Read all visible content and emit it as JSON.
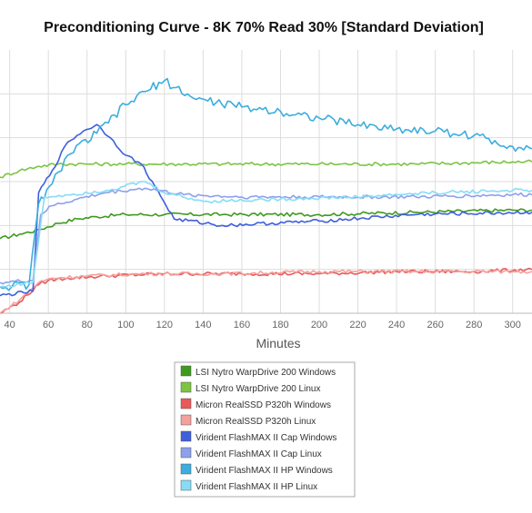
{
  "chart_data": {
    "type": "line",
    "title": "Preconditioning Curve - 8K 70% Read 30% [Standard Deviation]",
    "xlabel": "Minutes",
    "ylabel": "",
    "xlim": [
      35,
      310
    ],
    "ylim": [
      0,
      120
    ],
    "x_ticks": [
      40,
      60,
      80,
      100,
      120,
      140,
      160,
      180,
      200,
      220,
      240,
      260,
      280,
      300
    ],
    "y_gridlines": [
      20,
      40,
      60,
      80,
      100
    ],
    "legend_position": "bottom-center",
    "grid": true,
    "series": [
      {
        "name": "LSI Nytro WarpDrive 200 Windows",
        "color": "#3d9a1e",
        "points": [
          [
            35,
            34
          ],
          [
            45,
            36
          ],
          [
            55,
            38
          ],
          [
            65,
            41
          ],
          [
            75,
            43
          ],
          [
            85,
            44
          ],
          [
            100,
            45
          ],
          [
            120,
            45
          ],
          [
            150,
            45
          ],
          [
            200,
            45
          ],
          [
            250,
            46
          ],
          [
            300,
            47
          ],
          [
            310,
            47
          ]
        ]
      },
      {
        "name": "LSI Nytro WarpDrive 200 Linux",
        "color": "#7cc442",
        "points": [
          [
            35,
            62
          ],
          [
            45,
            65
          ],
          [
            55,
            67
          ],
          [
            65,
            68
          ],
          [
            80,
            68
          ],
          [
            100,
            68
          ],
          [
            150,
            68
          ],
          [
            200,
            68
          ],
          [
            250,
            68
          ],
          [
            300,
            69
          ],
          [
            310,
            69
          ]
        ]
      },
      {
        "name": "Micron RealSSD P320h Windows",
        "color": "#e8595a",
        "points": [
          [
            35,
            0
          ],
          [
            45,
            5
          ],
          [
            55,
            13
          ],
          [
            60,
            15
          ],
          [
            70,
            16
          ],
          [
            90,
            17
          ],
          [
            120,
            18
          ],
          [
            160,
            18
          ],
          [
            200,
            18
          ],
          [
            240,
            19
          ],
          [
            280,
            19
          ],
          [
            310,
            20
          ]
        ]
      },
      {
        "name": "Micron RealSSD P320h Linux",
        "color": "#f4a09d",
        "points": [
          [
            35,
            0
          ],
          [
            45,
            6
          ],
          [
            55,
            14
          ],
          [
            62,
            16
          ],
          [
            80,
            17
          ],
          [
            110,
            18
          ],
          [
            150,
            18
          ],
          [
            200,
            19
          ],
          [
            250,
            19
          ],
          [
            300,
            19
          ],
          [
            310,
            19
          ]
        ]
      },
      {
        "name": "Virident FlashMAX II Cap Windows",
        "color": "#3f5fdc",
        "points": [
          [
            35,
            8
          ],
          [
            52,
            10
          ],
          [
            55,
            55
          ],
          [
            62,
            65
          ],
          [
            70,
            78
          ],
          [
            78,
            83
          ],
          [
            85,
            86
          ],
          [
            92,
            80
          ],
          [
            100,
            72
          ],
          [
            108,
            68
          ],
          [
            115,
            58
          ],
          [
            125,
            43
          ],
          [
            150,
            40
          ],
          [
            200,
            42
          ],
          [
            250,
            45
          ],
          [
            310,
            46
          ]
        ]
      },
      {
        "name": "Virident FlashMAX II Cap Linux",
        "color": "#8da0ee",
        "points": [
          [
            35,
            14
          ],
          [
            52,
            15
          ],
          [
            56,
            45
          ],
          [
            62,
            49
          ],
          [
            75,
            52
          ],
          [
            90,
            55
          ],
          [
            110,
            57
          ],
          [
            130,
            54
          ],
          [
            160,
            53
          ],
          [
            200,
            53
          ],
          [
            250,
            53
          ],
          [
            300,
            54
          ],
          [
            310,
            54
          ]
        ]
      },
      {
        "name": "Virident FlashMAX II HP Windows",
        "color": "#3cadde",
        "points": [
          [
            35,
            12
          ],
          [
            50,
            13
          ],
          [
            55,
            50
          ],
          [
            62,
            59
          ],
          [
            70,
            72
          ],
          [
            85,
            82
          ],
          [
            100,
            95
          ],
          [
            110,
            101
          ],
          [
            120,
            106
          ],
          [
            135,
            98
          ],
          [
            160,
            94
          ],
          [
            180,
            92
          ],
          [
            200,
            89
          ],
          [
            220,
            86
          ],
          [
            240,
            84
          ],
          [
            260,
            83
          ],
          [
            280,
            81
          ],
          [
            300,
            76
          ],
          [
            310,
            75
          ]
        ]
      },
      {
        "name": "Virident FlashMAX II HP Linux",
        "color": "#86dcf5",
        "points": [
          [
            35,
            12
          ],
          [
            52,
            14
          ],
          [
            58,
            53
          ],
          [
            70,
            54
          ],
          [
            90,
            56
          ],
          [
            110,
            60
          ],
          [
            120,
            55
          ],
          [
            140,
            51
          ],
          [
            180,
            52
          ],
          [
            220,
            53
          ],
          [
            260,
            55
          ],
          [
            300,
            56
          ],
          [
            310,
            56
          ]
        ]
      }
    ]
  }
}
